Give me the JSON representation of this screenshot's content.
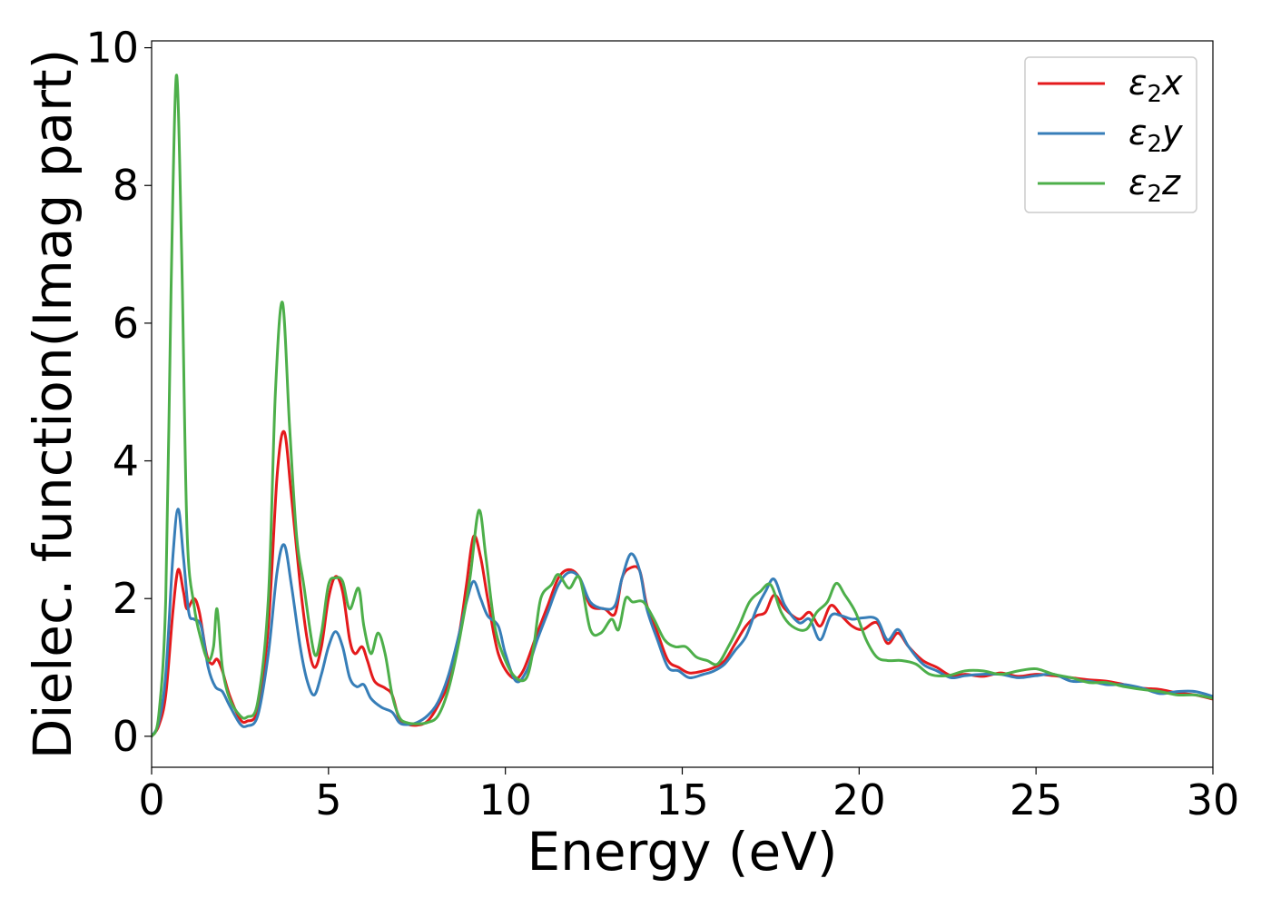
{
  "chart_data": {
    "type": "line",
    "title": "",
    "xlabel": "Energy (eV)",
    "ylabel": "Dielec. function(Imag part)",
    "xlim": [
      0,
      30
    ],
    "ylim": [
      -0.45,
      10.1
    ],
    "xticks": [
      0,
      5,
      10,
      15,
      20,
      25,
      30
    ],
    "xtick_labels": [
      "0",
      "5",
      "10",
      "15",
      "20",
      "25",
      "30"
    ],
    "yticks": [
      0,
      2,
      4,
      6,
      8,
      10
    ],
    "ytick_labels": [
      "0",
      "2",
      "4",
      "6",
      "8",
      "10"
    ],
    "grid": false,
    "legend_position": "top-right",
    "series": [
      {
        "name": "ε2x",
        "legend_base": "ε",
        "legend_sub": "2",
        "legend_var": "x",
        "color": "#e41a1c",
        "points": [
          [
            0,
            0
          ],
          [
            0.2,
            0.15
          ],
          [
            0.4,
            0.6
          ],
          [
            0.6,
            1.8
          ],
          [
            0.75,
            2.42
          ],
          [
            0.9,
            2.1
          ],
          [
            1.0,
            1.85
          ],
          [
            1.2,
            2.0
          ],
          [
            1.35,
            1.8
          ],
          [
            1.55,
            1.2
          ],
          [
            1.7,
            1.05
          ],
          [
            1.85,
            1.12
          ],
          [
            2.0,
            0.95
          ],
          [
            2.2,
            0.6
          ],
          [
            2.5,
            0.25
          ],
          [
            2.7,
            0.22
          ],
          [
            3.0,
            0.4
          ],
          [
            3.3,
            1.6
          ],
          [
            3.55,
            3.8
          ],
          [
            3.75,
            4.42
          ],
          [
            3.95,
            3.5
          ],
          [
            4.2,
            2.2
          ],
          [
            4.4,
            1.4
          ],
          [
            4.6,
            1.0
          ],
          [
            4.8,
            1.3
          ],
          [
            5.0,
            2.0
          ],
          [
            5.2,
            2.32
          ],
          [
            5.4,
            2.1
          ],
          [
            5.6,
            1.4
          ],
          [
            5.75,
            1.2
          ],
          [
            5.95,
            1.3
          ],
          [
            6.1,
            1.1
          ],
          [
            6.3,
            0.8
          ],
          [
            6.6,
            0.7
          ],
          [
            6.8,
            0.6
          ],
          [
            7.0,
            0.25
          ],
          [
            7.2,
            0.18
          ],
          [
            7.5,
            0.16
          ],
          [
            7.8,
            0.22
          ],
          [
            8.1,
            0.45
          ],
          [
            8.4,
            0.8
          ],
          [
            8.7,
            1.5
          ],
          [
            8.9,
            2.2
          ],
          [
            9.1,
            2.9
          ],
          [
            9.3,
            2.6
          ],
          [
            9.5,
            2.0
          ],
          [
            9.8,
            1.2
          ],
          [
            10.2,
            0.85
          ],
          [
            10.5,
            0.95
          ],
          [
            10.9,
            1.5
          ],
          [
            11.2,
            1.9
          ],
          [
            11.5,
            2.3
          ],
          [
            11.8,
            2.42
          ],
          [
            12.1,
            2.3
          ],
          [
            12.4,
            1.9
          ],
          [
            12.8,
            1.85
          ],
          [
            13.1,
            1.78
          ],
          [
            13.3,
            2.3
          ],
          [
            13.55,
            2.45
          ],
          [
            13.8,
            2.4
          ],
          [
            14.0,
            1.9
          ],
          [
            14.3,
            1.5
          ],
          [
            14.6,
            1.1
          ],
          [
            14.9,
            1.0
          ],
          [
            15.2,
            0.92
          ],
          [
            15.6,
            0.95
          ],
          [
            15.9,
            1.0
          ],
          [
            16.2,
            1.1
          ],
          [
            16.5,
            1.35
          ],
          [
            16.8,
            1.6
          ],
          [
            17.1,
            1.75
          ],
          [
            17.35,
            1.8
          ],
          [
            17.6,
            2.05
          ],
          [
            17.9,
            1.85
          ],
          [
            18.3,
            1.7
          ],
          [
            18.6,
            1.8
          ],
          [
            18.9,
            1.6
          ],
          [
            19.2,
            1.9
          ],
          [
            19.5,
            1.75
          ],
          [
            19.8,
            1.6
          ],
          [
            20.1,
            1.55
          ],
          [
            20.5,
            1.65
          ],
          [
            20.8,
            1.35
          ],
          [
            21.1,
            1.5
          ],
          [
            21.4,
            1.3
          ],
          [
            21.8,
            1.1
          ],
          [
            22.2,
            1.0
          ],
          [
            22.6,
            0.88
          ],
          [
            23.0,
            0.9
          ],
          [
            23.5,
            0.87
          ],
          [
            24.0,
            0.92
          ],
          [
            24.5,
            0.87
          ],
          [
            25.0,
            0.9
          ],
          [
            25.5,
            0.88
          ],
          [
            26.0,
            0.85
          ],
          [
            26.5,
            0.82
          ],
          [
            27.0,
            0.8
          ],
          [
            27.5,
            0.75
          ],
          [
            28.0,
            0.7
          ],
          [
            28.5,
            0.68
          ],
          [
            29.0,
            0.63
          ],
          [
            29.5,
            0.6
          ],
          [
            30.0,
            0.54
          ]
        ]
      },
      {
        "name": "ε2y",
        "legend_base": "ε",
        "legend_sub": "2",
        "legend_var": "y",
        "color": "#377eb8",
        "points": [
          [
            0,
            0
          ],
          [
            0.2,
            0.2
          ],
          [
            0.4,
            0.9
          ],
          [
            0.6,
            2.6
          ],
          [
            0.75,
            3.3
          ],
          [
            0.9,
            2.6
          ],
          [
            1.05,
            1.8
          ],
          [
            1.2,
            1.7
          ],
          [
            1.4,
            1.6
          ],
          [
            1.6,
            1.0
          ],
          [
            1.8,
            0.72
          ],
          [
            2.0,
            0.65
          ],
          [
            2.2,
            0.45
          ],
          [
            2.5,
            0.18
          ],
          [
            2.7,
            0.15
          ],
          [
            3.0,
            0.3
          ],
          [
            3.3,
            1.2
          ],
          [
            3.55,
            2.4
          ],
          [
            3.75,
            2.78
          ],
          [
            3.95,
            2.2
          ],
          [
            4.2,
            1.3
          ],
          [
            4.4,
            0.8
          ],
          [
            4.6,
            0.6
          ],
          [
            4.8,
            0.9
          ],
          [
            5.0,
            1.3
          ],
          [
            5.2,
            1.52
          ],
          [
            5.4,
            1.3
          ],
          [
            5.6,
            0.85
          ],
          [
            5.8,
            0.72
          ],
          [
            6.0,
            0.75
          ],
          [
            6.2,
            0.55
          ],
          [
            6.5,
            0.42
          ],
          [
            6.8,
            0.35
          ],
          [
            7.0,
            0.2
          ],
          [
            7.2,
            0.17
          ],
          [
            7.5,
            0.2
          ],
          [
            7.8,
            0.3
          ],
          [
            8.1,
            0.5
          ],
          [
            8.4,
            0.9
          ],
          [
            8.7,
            1.5
          ],
          [
            8.9,
            1.95
          ],
          [
            9.1,
            2.25
          ],
          [
            9.3,
            2.0
          ],
          [
            9.5,
            1.75
          ],
          [
            9.8,
            1.6
          ],
          [
            10.0,
            1.2
          ],
          [
            10.3,
            0.8
          ],
          [
            10.6,
            0.95
          ],
          [
            10.9,
            1.4
          ],
          [
            11.2,
            1.8
          ],
          [
            11.5,
            2.2
          ],
          [
            11.8,
            2.38
          ],
          [
            12.1,
            2.3
          ],
          [
            12.4,
            1.95
          ],
          [
            12.8,
            1.85
          ],
          [
            13.1,
            1.9
          ],
          [
            13.3,
            2.3
          ],
          [
            13.55,
            2.65
          ],
          [
            13.8,
            2.4
          ],
          [
            14.0,
            1.85
          ],
          [
            14.3,
            1.4
          ],
          [
            14.6,
            1.0
          ],
          [
            14.9,
            0.95
          ],
          [
            15.2,
            0.85
          ],
          [
            15.6,
            0.9
          ],
          [
            15.9,
            0.95
          ],
          [
            16.2,
            1.05
          ],
          [
            16.5,
            1.25
          ],
          [
            16.8,
            1.45
          ],
          [
            17.1,
            1.85
          ],
          [
            17.35,
            2.1
          ],
          [
            17.6,
            2.28
          ],
          [
            17.9,
            1.9
          ],
          [
            18.3,
            1.65
          ],
          [
            18.6,
            1.7
          ],
          [
            18.9,
            1.4
          ],
          [
            19.2,
            1.75
          ],
          [
            19.5,
            1.75
          ],
          [
            19.8,
            1.7
          ],
          [
            20.1,
            1.72
          ],
          [
            20.5,
            1.7
          ],
          [
            20.8,
            1.4
          ],
          [
            21.1,
            1.55
          ],
          [
            21.4,
            1.3
          ],
          [
            21.8,
            1.05
          ],
          [
            22.2,
            0.95
          ],
          [
            22.6,
            0.85
          ],
          [
            23.0,
            0.88
          ],
          [
            23.5,
            0.9
          ],
          [
            24.0,
            0.9
          ],
          [
            24.5,
            0.85
          ],
          [
            25.0,
            0.88
          ],
          [
            25.5,
            0.9
          ],
          [
            26.0,
            0.8
          ],
          [
            26.5,
            0.8
          ],
          [
            27.0,
            0.75
          ],
          [
            27.5,
            0.75
          ],
          [
            28.0,
            0.7
          ],
          [
            28.5,
            0.62
          ],
          [
            29.0,
            0.65
          ],
          [
            29.5,
            0.65
          ],
          [
            30.0,
            0.58
          ]
        ]
      },
      {
        "name": "ε2z",
        "legend_base": "ε",
        "legend_sub": "2",
        "legend_var": "z",
        "color": "#4daf4a",
        "points": [
          [
            0,
            0
          ],
          [
            0.2,
            0.3
          ],
          [
            0.4,
            2.0
          ],
          [
            0.55,
            6.5
          ],
          [
            0.7,
            9.6
          ],
          [
            0.85,
            7.0
          ],
          [
            1.0,
            3.0
          ],
          [
            1.2,
            1.9
          ],
          [
            1.4,
            1.4
          ],
          [
            1.6,
            1.1
          ],
          [
            1.75,
            1.3
          ],
          [
            1.85,
            1.85
          ],
          [
            2.0,
            1.0
          ],
          [
            2.2,
            0.55
          ],
          [
            2.5,
            0.3
          ],
          [
            2.7,
            0.28
          ],
          [
            3.0,
            0.5
          ],
          [
            3.3,
            2.0
          ],
          [
            3.5,
            5.0
          ],
          [
            3.7,
            6.3
          ],
          [
            3.9,
            4.5
          ],
          [
            4.1,
            2.9
          ],
          [
            4.3,
            2.2
          ],
          [
            4.6,
            1.2
          ],
          [
            4.8,
            1.5
          ],
          [
            5.0,
            2.2
          ],
          [
            5.2,
            2.3
          ],
          [
            5.4,
            2.25
          ],
          [
            5.6,
            1.85
          ],
          [
            5.85,
            2.15
          ],
          [
            6.0,
            1.6
          ],
          [
            6.2,
            1.2
          ],
          [
            6.4,
            1.5
          ],
          [
            6.6,
            1.2
          ],
          [
            6.8,
            0.6
          ],
          [
            7.0,
            0.28
          ],
          [
            7.2,
            0.2
          ],
          [
            7.5,
            0.18
          ],
          [
            7.8,
            0.2
          ],
          [
            8.1,
            0.3
          ],
          [
            8.4,
            0.7
          ],
          [
            8.7,
            1.4
          ],
          [
            9.0,
            2.3
          ],
          [
            9.25,
            3.28
          ],
          [
            9.45,
            2.6
          ],
          [
            9.7,
            1.6
          ],
          [
            10.0,
            1.1
          ],
          [
            10.3,
            0.85
          ],
          [
            10.6,
            0.85
          ],
          [
            10.8,
            1.3
          ],
          [
            11.0,
            2.0
          ],
          [
            11.3,
            2.2
          ],
          [
            11.5,
            2.35
          ],
          [
            11.8,
            2.15
          ],
          [
            12.1,
            2.3
          ],
          [
            12.4,
            1.55
          ],
          [
            12.7,
            1.5
          ],
          [
            13.0,
            1.7
          ],
          [
            13.2,
            1.55
          ],
          [
            13.4,
            2.0
          ],
          [
            13.6,
            1.95
          ],
          [
            13.9,
            1.95
          ],
          [
            14.2,
            1.7
          ],
          [
            14.5,
            1.4
          ],
          [
            14.8,
            1.3
          ],
          [
            15.1,
            1.3
          ],
          [
            15.4,
            1.15
          ],
          [
            15.7,
            1.1
          ],
          [
            16.0,
            1.05
          ],
          [
            16.3,
            1.3
          ],
          [
            16.6,
            1.6
          ],
          [
            16.9,
            1.95
          ],
          [
            17.2,
            2.1
          ],
          [
            17.5,
            2.2
          ],
          [
            17.8,
            1.8
          ],
          [
            18.1,
            1.6
          ],
          [
            18.5,
            1.55
          ],
          [
            18.8,
            1.8
          ],
          [
            19.1,
            1.95
          ],
          [
            19.35,
            2.22
          ],
          [
            19.6,
            2.05
          ],
          [
            19.9,
            1.8
          ],
          [
            20.2,
            1.4
          ],
          [
            20.5,
            1.15
          ],
          [
            20.8,
            1.1
          ],
          [
            21.2,
            1.1
          ],
          [
            21.6,
            1.05
          ],
          [
            22.0,
            0.9
          ],
          [
            22.5,
            0.88
          ],
          [
            23.0,
            0.95
          ],
          [
            23.5,
            0.95
          ],
          [
            24.0,
            0.9
          ],
          [
            24.5,
            0.95
          ],
          [
            25.0,
            0.98
          ],
          [
            25.5,
            0.9
          ],
          [
            26.0,
            0.85
          ],
          [
            26.5,
            0.78
          ],
          [
            27.0,
            0.78
          ],
          [
            27.5,
            0.72
          ],
          [
            28.0,
            0.68
          ],
          [
            28.5,
            0.65
          ],
          [
            29.0,
            0.6
          ],
          [
            29.5,
            0.6
          ],
          [
            30.0,
            0.55
          ]
        ]
      }
    ]
  }
}
